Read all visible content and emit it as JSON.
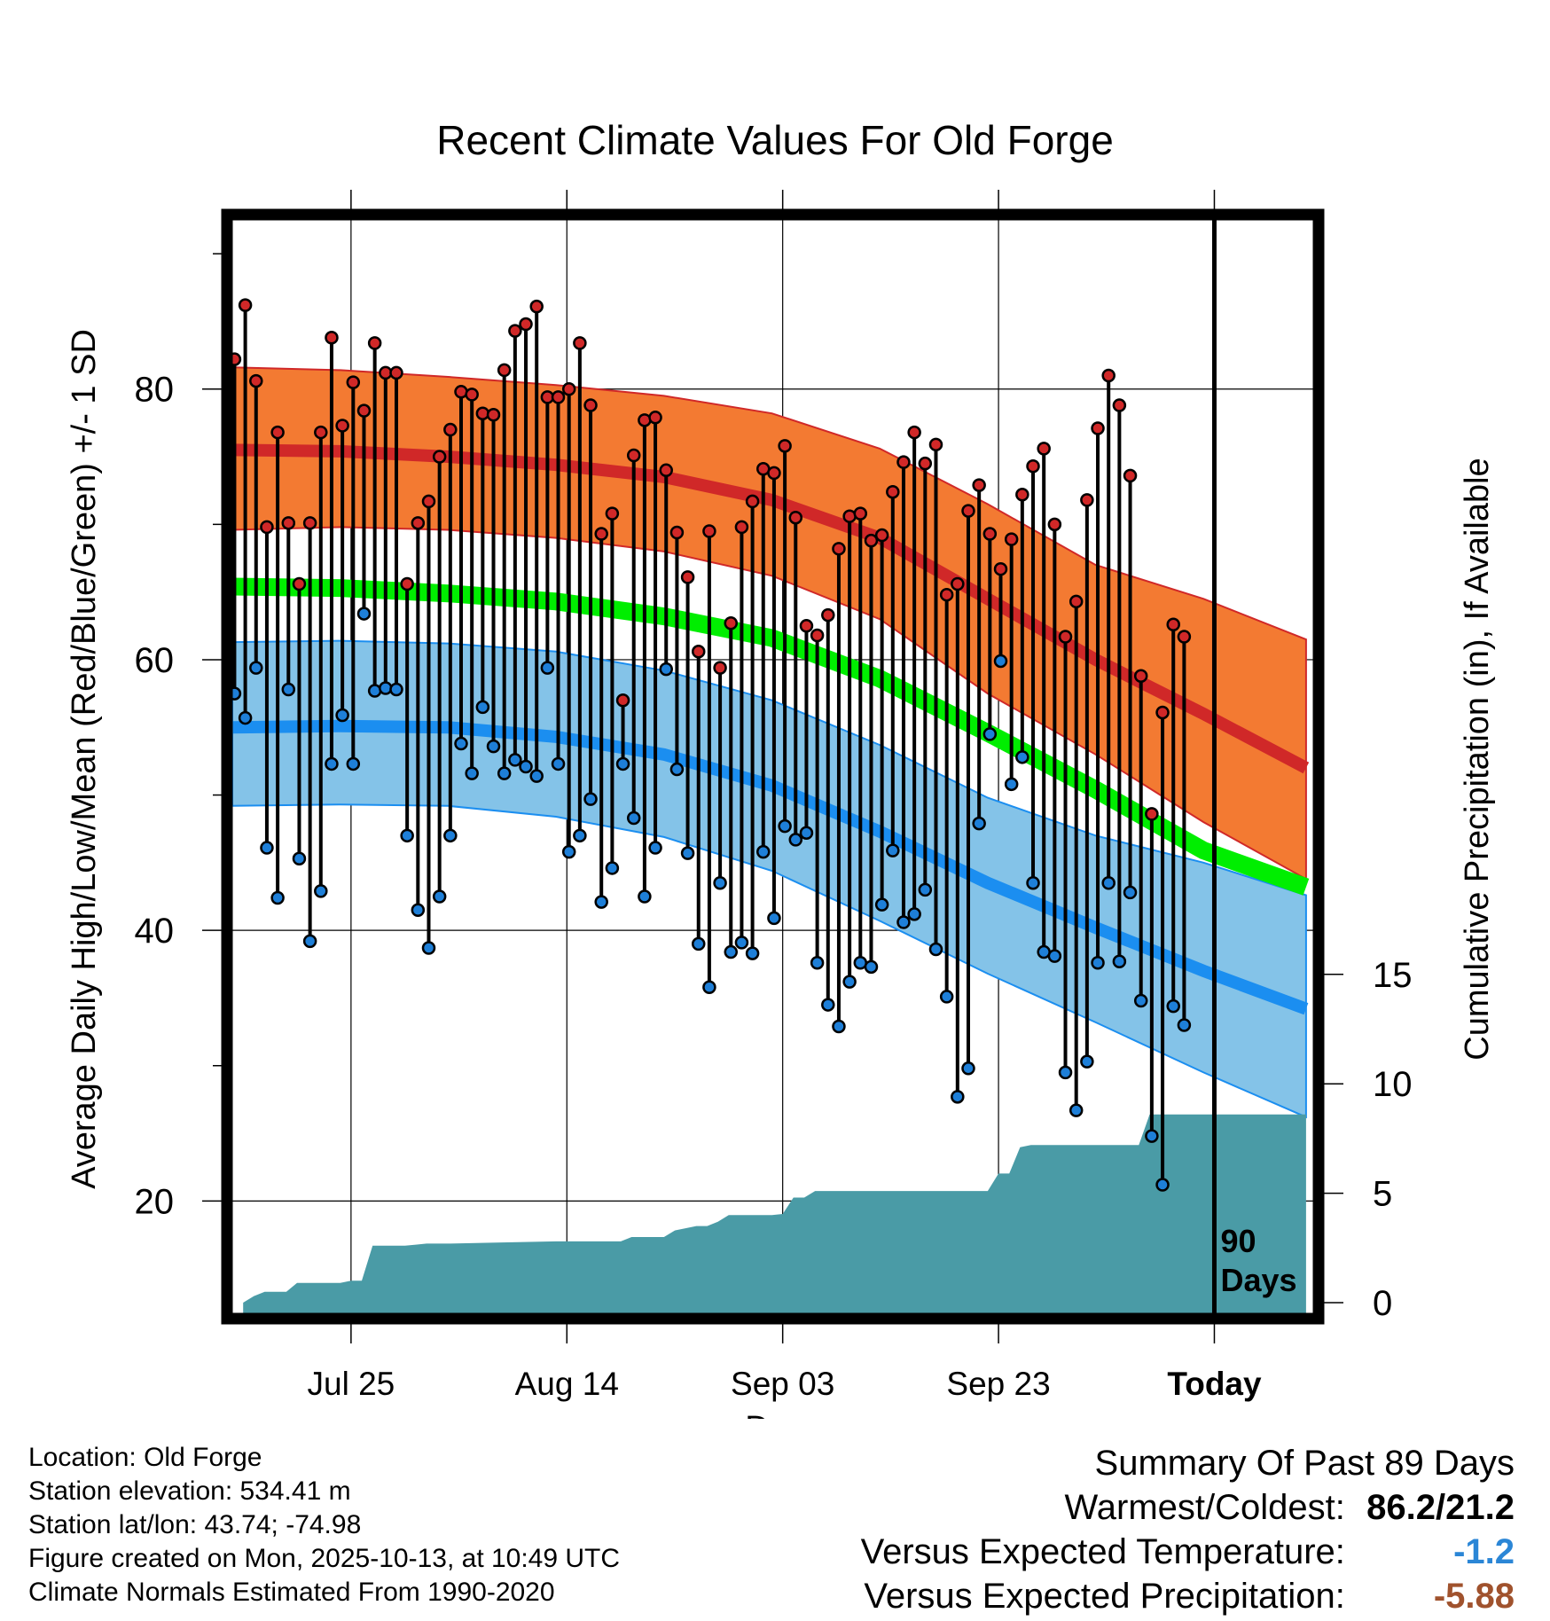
{
  "chart_data": {
    "type": "line",
    "title": "Recent Climate Values For Old Forge",
    "xlabel": "Day",
    "ylabel": "Average Daily High/Low/Mean (Red/Blue/Green) +/- 1 SD",
    "y2label": "Cumulative Precipitation (in), If Available",
    "ylim": [
      11.7,
      92.5
    ],
    "y2lim": [
      0,
      21
    ],
    "yticks": [
      20,
      40,
      60,
      80
    ],
    "y2ticks": [
      0,
      5,
      10,
      15
    ],
    "x_tick_labels": [
      "Jul 25",
      "Aug 14",
      "Sep 03",
      "Sep 23",
      "Today"
    ],
    "x_tick_days": [
      11,
      31,
      51,
      71,
      91
    ],
    "today_label": "90 Days",
    "colors": {
      "high_band": "#f37a32",
      "high_line": "#d02828",
      "low_band": "#84c3e8",
      "low_line": "#1b8ef0",
      "mean_line": "#00ee00",
      "precip": "#4a9ba6",
      "high_point": "#d02828",
      "low_point": "#1e7fd8"
    },
    "normal_high": {
      "days": [
        0,
        10,
        20,
        30,
        40,
        50,
        60,
        70,
        80,
        90,
        99.5
      ],
      "mean": [
        75.5,
        75.4,
        75.0,
        74.4,
        73.5,
        71.8,
        69.0,
        64.5,
        60.0,
        56.0,
        52.0
      ],
      "upper": [
        81.6,
        81.4,
        80.9,
        80.3,
        79.5,
        78.2,
        75.6,
        71.5,
        67.0,
        64.5,
        61.5
      ],
      "lower": [
        69.6,
        69.8,
        69.6,
        69.0,
        68.0,
        66.2,
        63.0,
        57.5,
        53.0,
        48.0,
        43.8
      ]
    },
    "normal_low": {
      "days": [
        0,
        10,
        20,
        30,
        40,
        50,
        60,
        70,
        80,
        90,
        99.5
      ],
      "mean": [
        55.0,
        55.1,
        55.0,
        54.3,
        53.0,
        50.7,
        47.3,
        43.5,
        40.2,
        37.0,
        34.2
      ],
      "upper": [
        61.3,
        61.4,
        61.2,
        60.6,
        59.2,
        57.0,
        53.7,
        49.8,
        47.0,
        45.0,
        42.6
      ],
      "lower": [
        49.2,
        49.3,
        49.2,
        48.4,
        46.9,
        44.4,
        40.7,
        36.8,
        33.2,
        29.5,
        26.2
      ]
    },
    "normal_mean": {
      "days": [
        0,
        10,
        20,
        30,
        40,
        50,
        60,
        70,
        80,
        90,
        99.5
      ],
      "values": [
        65.4,
        65.3,
        64.9,
        64.3,
        63.2,
        61.6,
        58.6,
        54.6,
        50.4,
        45.9,
        43.2
      ]
    },
    "daily_high": [
      82.2,
      86.2,
      80.6,
      69.8,
      76.8,
      70.1,
      65.6,
      70.1,
      76.8,
      83.8,
      77.3,
      80.5,
      78.4,
      83.4,
      81.2,
      81.2,
      65.6,
      70.1,
      71.7,
      75.0,
      77.0,
      79.8,
      79.6,
      78.2,
      78.1,
      81.4,
      84.3,
      84.8,
      86.1,
      79.4,
      79.4,
      80.0,
      83.4,
      78.8,
      69.3,
      70.8,
      57.0,
      75.1,
      77.7,
      77.9,
      74.0,
      69.4,
      66.1,
      60.6,
      69.5,
      59.4,
      62.7,
      69.8,
      71.7,
      74.1,
      73.8,
      75.8,
      70.5,
      62.5,
      61.8,
      63.3,
      68.2,
      70.6,
      70.8,
      68.8,
      69.2,
      72.4,
      74.6,
      76.8,
      74.5,
      75.9,
      64.8,
      65.6,
      71.0,
      72.9,
      69.3,
      66.7,
      68.9,
      72.2,
      74.3,
      75.6,
      70.0,
      61.7,
      64.3,
      71.8,
      77.1,
      81.0,
      78.8,
      73.6,
      58.8,
      48.6,
      56.1,
      62.6,
      61.7
    ],
    "daily_low": [
      57.5,
      55.7,
      59.4,
      46.1,
      42.4,
      57.8,
      45.3,
      39.2,
      42.9,
      52.3,
      55.9,
      52.3,
      63.4,
      57.7,
      57.9,
      57.8,
      47.0,
      41.5,
      38.7,
      42.5,
      47.0,
      53.8,
      51.6,
      56.5,
      53.6,
      51.6,
      52.6,
      52.1,
      51.4,
      59.4,
      52.3,
      45.8,
      47.0,
      49.7,
      42.1,
      44.6,
      52.3,
      48.3,
      42.5,
      46.1,
      59.3,
      51.9,
      45.7,
      39.0,
      35.8,
      43.5,
      38.4,
      39.1,
      38.3,
      45.8,
      40.9,
      47.7,
      46.7,
      47.2,
      37.6,
      34.5,
      32.9,
      36.2,
      37.6,
      37.3,
      41.9,
      45.9,
      40.6,
      41.2,
      43.0,
      38.6,
      35.1,
      27.7,
      29.8,
      47.9,
      54.5,
      59.9,
      50.8,
      52.8,
      43.5,
      38.4,
      38.1,
      29.5,
      26.7,
      30.3,
      37.6,
      43.5,
      37.7,
      42.8,
      34.8,
      24.8,
      21.2,
      34.4,
      33.0
    ],
    "precip_days": [
      1,
      2,
      3,
      4,
      5,
      6,
      7,
      8,
      9,
      10,
      11,
      12,
      13,
      14,
      15,
      16,
      17,
      18,
      19,
      20,
      25,
      30,
      35,
      36,
      37,
      38,
      39,
      40,
      41,
      42,
      43,
      44,
      45,
      46,
      47,
      48,
      49,
      50,
      51,
      52,
      53,
      54,
      55,
      56,
      57,
      58,
      60,
      65,
      69,
      70,
      71,
      72,
      73,
      74,
      75,
      80,
      83,
      84,
      85,
      88,
      91,
      99.5
    ],
    "precip_cum": [
      0.0,
      0.3,
      0.5,
      0.5,
      0.5,
      0.9,
      0.9,
      0.9,
      0.9,
      0.9,
      1.0,
      1.0,
      2.6,
      2.6,
      2.6,
      2.6,
      2.65,
      2.7,
      2.7,
      2.7,
      2.75,
      2.8,
      2.8,
      2.8,
      3.0,
      3.0,
      3.0,
      3.0,
      3.3,
      3.4,
      3.5,
      3.5,
      3.7,
      4.0,
      4.0,
      4.0,
      4.0,
      4.0,
      4.05,
      4.8,
      4.8,
      5.1,
      5.1,
      5.1,
      5.1,
      5.1,
      5.1,
      5.1,
      5.1,
      5.1,
      5.9,
      5.9,
      7.1,
      7.2,
      7.2,
      7.2,
      7.2,
      7.2,
      8.6,
      8.6,
      8.6,
      8.6
    ]
  },
  "footer": {
    "location": "Location: Old Forge",
    "elevation": "Station elevation: 534.41 m",
    "latlon": "Station lat/lon: 43.74; -74.98",
    "created": "Figure created on Mon, 2025-10-13, at 10:49 UTC",
    "normals": "Climate Normals Estimated From 1990-2020"
  },
  "summary": {
    "heading": "Summary Of Past 89 Days",
    "warm_cold_label": "Warmest/Coldest:",
    "warm_cold_value": "86.2/21.2",
    "temp_label": "Versus Expected Temperature:",
    "temp_value": "-1.2",
    "precip_label": "Versus Expected Precipitation:",
    "precip_value": "-5.88"
  }
}
